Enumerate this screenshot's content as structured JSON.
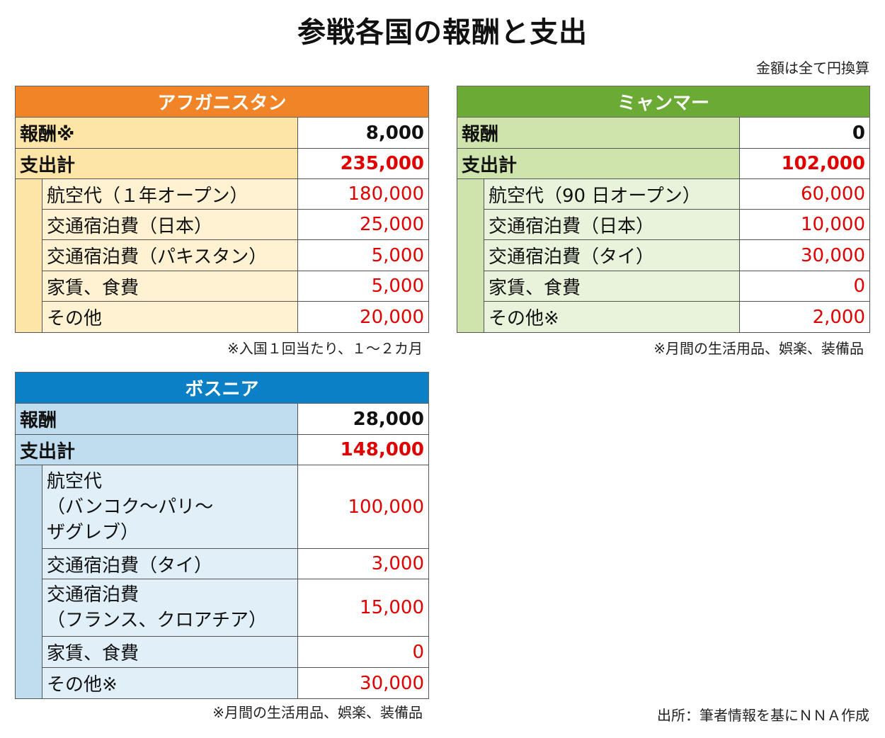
{
  "title": "参戦各国の報酬と支出",
  "unit_note": "金額は全て円換算",
  "source_note": "出所：筆者情報を基にＮＮＡ作成",
  "panels": {
    "afghanistan": {
      "name": "アフガニスタン",
      "reward_label": "報酬※",
      "reward_value": "8,000",
      "total_label": "支出計",
      "total_value": "235,000",
      "items": [
        {
          "label": "航空代（１年オープン）",
          "value": "180,000"
        },
        {
          "label": "交通宿泊費（日本）",
          "value": "25,000"
        },
        {
          "label": "交通宿泊費（パキスタン）",
          "value": "5,000"
        },
        {
          "label": "家賃、食費",
          "value": "5,000"
        },
        {
          "label": "その他",
          "value": "20,000"
        }
      ],
      "footnote": "※入国１回当たり、１～２カ月"
    },
    "myanmar": {
      "name": "ミャンマー",
      "reward_label": "報酬",
      "reward_value": "0",
      "total_label": "支出計",
      "total_value": "102,000",
      "items": [
        {
          "label": "航空代（90 日オープン）",
          "value": "60,000"
        },
        {
          "label": "交通宿泊費（日本）",
          "value": "10,000"
        },
        {
          "label": "交通宿泊費（タイ）",
          "value": "30,000"
        },
        {
          "label": "家賃、食費",
          "value": "0"
        },
        {
          "label": "その他※",
          "value": "2,000"
        }
      ],
      "footnote": "※月間の生活用品、娯楽、装備品"
    },
    "bosnia": {
      "name": "ボスニア",
      "reward_label": "報酬",
      "reward_value": "28,000",
      "total_label": "支出計",
      "total_value": "148,000",
      "items": [
        {
          "label": "航空代\n（バンコク～パリ～\nザグレブ）",
          "value": "100,000"
        },
        {
          "label": "交通宿泊費（タイ）",
          "value": "3,000"
        },
        {
          "label": "交通宿泊費\n（フランス、クロアチア）",
          "value": "15,000"
        },
        {
          "label": "家賃、食費",
          "value": "0"
        },
        {
          "label": "その他※",
          "value": "30,000"
        }
      ],
      "footnote": "※月間の生活用品、娯楽、装備品"
    }
  }
}
